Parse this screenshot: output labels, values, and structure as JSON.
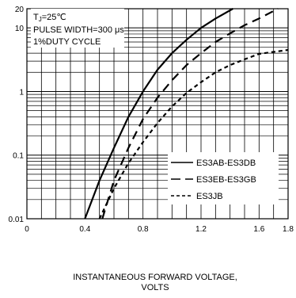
{
  "chart_data": {
    "type": "line",
    "title": "",
    "xlabel": "INSTANTANEOUS FORWARD VOLTAGE, VOLTS",
    "xlabel_lines": [
      "INSTANTANEOUS FORWARD VOLTAGE,",
      "VOLTS"
    ],
    "ylabel": "",
    "xlim": [
      0,
      1.8
    ],
    "ylim": [
      0.01,
      20
    ],
    "yscale": "log",
    "grid": true,
    "x_ticks": [
      0,
      0.4,
      0.8,
      1.2,
      1.6,
      1.8
    ],
    "x_tick_labels": [
      "0",
      "0.4",
      "0.8",
      "1.2",
      "1.6",
      "1.8"
    ],
    "y_ticks": [
      0.01,
      0.1,
      1,
      10,
      20
    ],
    "y_tick_labels": [
      "0.01",
      "0.1",
      "1",
      "10",
      "20"
    ],
    "annotations": [
      "TJ=25℃",
      "PULSE WIDTH=300 μs",
      "1%DUTY CYCLE"
    ],
    "annotation_parts": {
      "tj_prefix": "T",
      "tj_sub": "J",
      "tj_suffix": "=25℃",
      "pulse": "PULSE WIDTH=300 μs",
      "duty": "1%DUTY CYCLE"
    },
    "legend_position": "lower-right",
    "series": [
      {
        "name": "ES3AB-ES3DB",
        "style": "solid",
        "x": [
          0.4,
          0.5,
          0.6,
          0.7,
          0.8,
          0.9,
          1.0,
          1.1,
          1.2,
          1.3,
          1.42
        ],
        "y": [
          0.01,
          0.04,
          0.13,
          0.4,
          1.0,
          2.2,
          4.0,
          6.5,
          10,
          14,
          20
        ]
      },
      {
        "name": "ES3EB-ES3GB",
        "style": "dashed",
        "x": [
          0.52,
          0.6,
          0.7,
          0.8,
          0.9,
          1.0,
          1.1,
          1.2,
          1.3,
          1.4,
          1.5,
          1.6,
          1.73
        ],
        "y": [
          0.01,
          0.04,
          0.13,
          0.37,
          0.8,
          1.5,
          2.6,
          4.0,
          6.0,
          8.2,
          11,
          14,
          20
        ]
      },
      {
        "name": "ES3JB",
        "style": "dotted",
        "x": [
          0.5,
          0.6,
          0.7,
          0.8,
          0.9,
          1.0,
          1.1,
          1.2,
          1.3,
          1.4,
          1.5,
          1.6,
          1.8
        ],
        "y": [
          0.01,
          0.03,
          0.075,
          0.16,
          0.32,
          0.58,
          0.95,
          1.4,
          2.0,
          2.6,
          3.2,
          3.9,
          4.5
        ]
      }
    ]
  }
}
